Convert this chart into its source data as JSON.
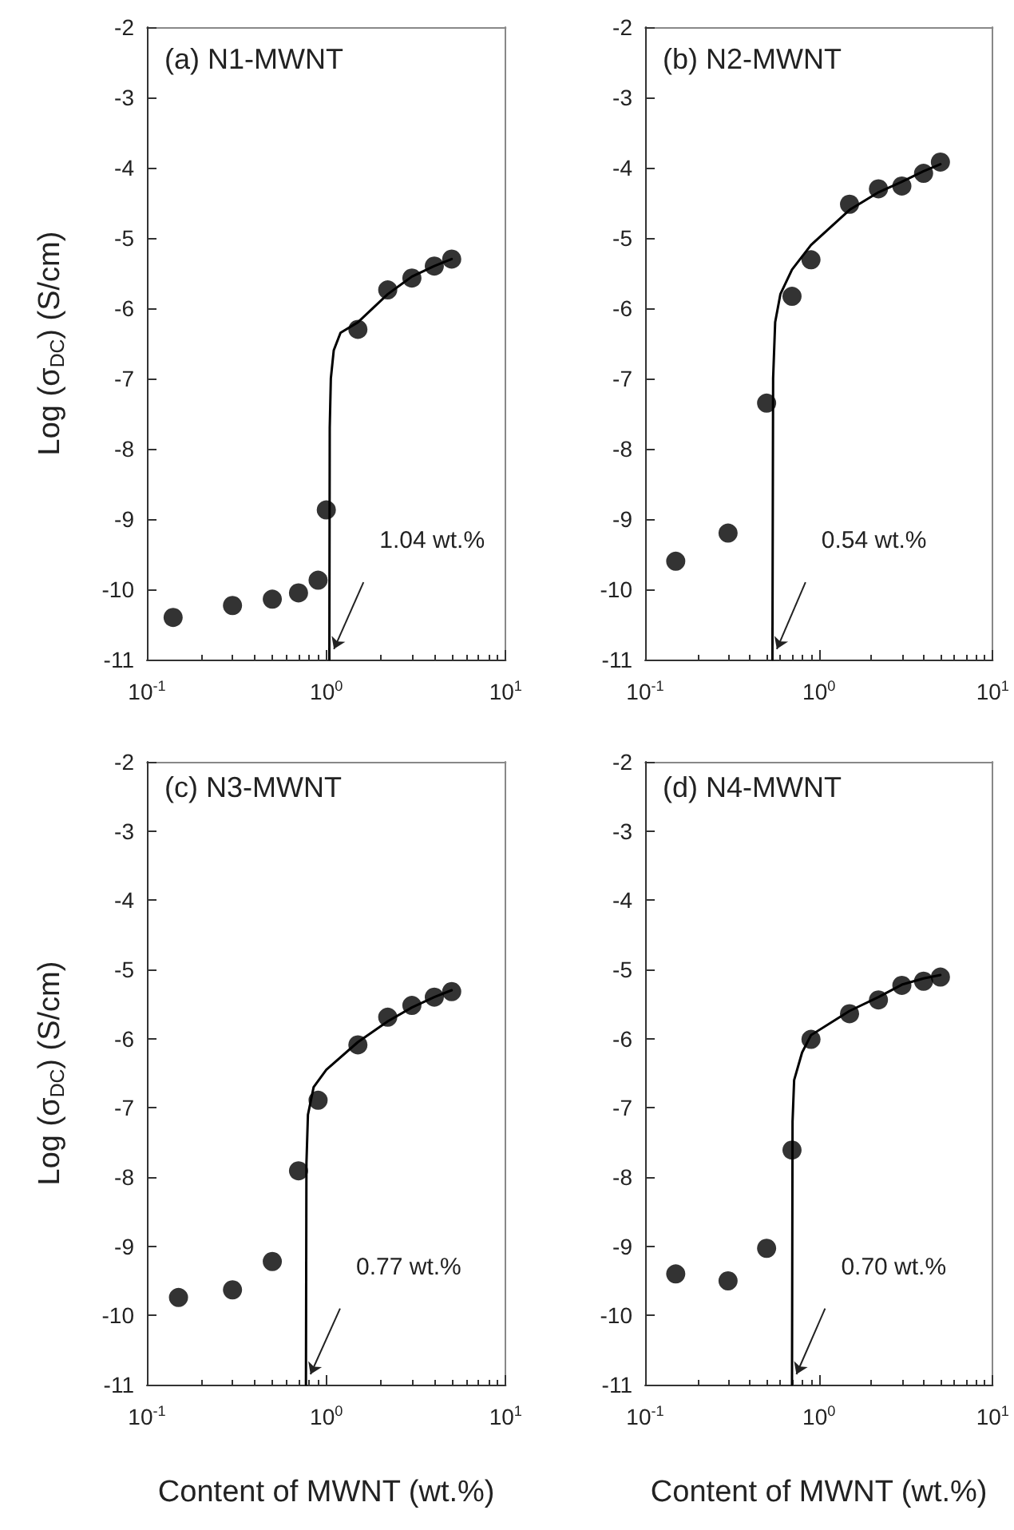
{
  "chart_data": [
    {
      "type": "scatter",
      "title": "(a) N1-MWNT",
      "ylabel": "Log (σ$_{DC}$) (S/cm)",
      "log": "x",
      "grid": false,
      "marker": "circle",
      "x": [
        0.14,
        0.3,
        0.5,
        0.7,
        0.9,
        1.0,
        1.5,
        2.2,
        3,
        4,
        5
      ],
      "xlim": [
        0.1,
        10
      ],
      "ylim": [
        -11,
        -2
      ],
      "xticks": [
        {
          "value": 0.1,
          "label": "10$^{-1}$"
        },
        {
          "value": 1,
          "label": "10$^{0}$"
        },
        {
          "value": 10,
          "label": "10$^{1}$"
        }
      ],
      "yticks": [
        -11,
        -10,
        -9,
        -8,
        -7,
        -6,
        -5,
        -4,
        -3,
        -2
      ],
      "series": [
        {
          "color": "#000000",
          "values": [
            -10.4,
            -10.23,
            -10.14,
            -10.05,
            -9.87,
            -8.87,
            -6.3,
            -5.74,
            -5.57,
            -5.4,
            -5.3
          ]
        },
        {
          "type": "line",
          "color": "#000000",
          "marker": "none",
          "line_style": "solid",
          "x": [
            1.04,
            1.045,
            1.06,
            1.1,
            1.2,
            1.5,
            2.2,
            3,
            4,
            5
          ],
          "values": [
            -11,
            -7.7,
            -7.0,
            -6.6,
            -6.35,
            -6.2,
            -5.8,
            -5.55,
            -5.4,
            -5.3
          ]
        }
      ],
      "annotations": [
        "1.04 wt.%"
      ]
    },
    {
      "type": "scatter",
      "title": "(b) N2-MWNT",
      "log": "x",
      "grid": false,
      "marker": "circle",
      "x": [
        0.15,
        0.3,
        0.5,
        0.7,
        0.9,
        1.5,
        2.2,
        3,
        4,
        5
      ],
      "xlim": [
        0.1,
        10
      ],
      "ylim": [
        -11,
        -2
      ],
      "xticks": [
        {
          "value": 0.1,
          "label": "10$^{-1}$"
        },
        {
          "value": 1,
          "label": "10$^{0}$"
        },
        {
          "value": 10,
          "label": "10$^{1}$"
        }
      ],
      "yticks": [
        -11,
        -10,
        -9,
        -8,
        -7,
        -6,
        -5,
        -4,
        -3,
        -2
      ],
      "series": [
        {
          "color": "#000000",
          "values": [
            -9.6,
            -9.2,
            -7.35,
            -5.83,
            -5.31,
            -4.52,
            -4.3,
            -4.26,
            -4.08,
            -3.92
          ]
        },
        {
          "type": "line",
          "color": "#000000",
          "marker": "none",
          "line_style": "solid",
          "x": [
            0.54,
            0.545,
            0.56,
            0.6,
            0.7,
            0.9,
            1.5,
            2.2,
            3,
            4,
            5
          ],
          "values": [
            -11,
            -7.0,
            -6.2,
            -5.8,
            -5.45,
            -5.1,
            -4.6,
            -4.35,
            -4.2,
            -4.05,
            -3.95
          ]
        }
      ],
      "annotations": [
        "0.54 wt.%"
      ]
    },
    {
      "type": "scatter",
      "title": "(c) N3-MWNT",
      "ylabel": "Log (σ$_{DC}$) (S/cm)",
      "xlabel": "Content of MWNT (wt.%)",
      "log": "x",
      "grid": false,
      "marker": "circle",
      "x": [
        0.15,
        0.3,
        0.5,
        0.7,
        0.9,
        1.5,
        2.2,
        3,
        4,
        5
      ],
      "xlim": [
        0.1,
        10
      ],
      "ylim": [
        -11,
        -2
      ],
      "xticks": [
        {
          "value": 0.1,
          "label": "10$^{-1}$"
        },
        {
          "value": 1,
          "label": "10$^{0}$"
        },
        {
          "value": 10,
          "label": "10$^{1}$"
        }
      ],
      "yticks": [
        -11,
        -10,
        -9,
        -8,
        -7,
        -6,
        -5,
        -4,
        -3,
        -2
      ],
      "series": [
        {
          "color": "#000000",
          "values": [
            -9.74,
            -9.63,
            -9.22,
            -7.91,
            -6.89,
            -6.09,
            -5.69,
            -5.52,
            -5.4,
            -5.32
          ]
        },
        {
          "type": "line",
          "color": "#000000",
          "marker": "none",
          "line_style": "solid",
          "x": [
            0.77,
            0.775,
            0.79,
            0.85,
            1.0,
            1.5,
            2.2,
            3,
            4,
            5
          ],
          "values": [
            -11,
            -7.8,
            -7.1,
            -6.7,
            -6.45,
            -6.05,
            -5.75,
            -5.55,
            -5.4,
            -5.3
          ]
        }
      ],
      "annotations": [
        "0.77 wt.%"
      ]
    },
    {
      "type": "scatter",
      "title": "(d) N4-MWNT",
      "xlabel": "Content of MWNT (wt.%)",
      "log": "x",
      "grid": false,
      "marker": "circle",
      "x": [
        0.15,
        0.3,
        0.5,
        0.7,
        0.9,
        1.5,
        2.2,
        3,
        4,
        5
      ],
      "xlim": [
        0.1,
        10
      ],
      "ylim": [
        -11,
        -2
      ],
      "xticks": [
        {
          "value": 0.1,
          "label": "10$^{-1}$"
        },
        {
          "value": 1,
          "label": "10$^{0}$"
        },
        {
          "value": 10,
          "label": "10$^{1}$"
        }
      ],
      "yticks": [
        -11,
        -10,
        -9,
        -8,
        -7,
        -6,
        -5,
        -4,
        -3,
        -2
      ],
      "series": [
        {
          "color": "#000000",
          "values": [
            -9.4,
            -9.5,
            -9.03,
            -7.61,
            -6.01,
            -5.64,
            -5.44,
            -5.23,
            -5.17,
            -5.11
          ]
        },
        {
          "type": "line",
          "color": "#000000",
          "marker": "none",
          "line_style": "solid",
          "x": [
            0.7,
            0.705,
            0.72,
            0.8,
            0.9,
            1.5,
            2.2,
            3,
            4,
            5
          ],
          "values": [
            -11,
            -7.2,
            -6.6,
            -6.2,
            -5.95,
            -5.6,
            -5.4,
            -5.22,
            -5.13,
            -5.08
          ]
        }
      ],
      "annotations": [
        "0.70 wt.%"
      ]
    }
  ]
}
